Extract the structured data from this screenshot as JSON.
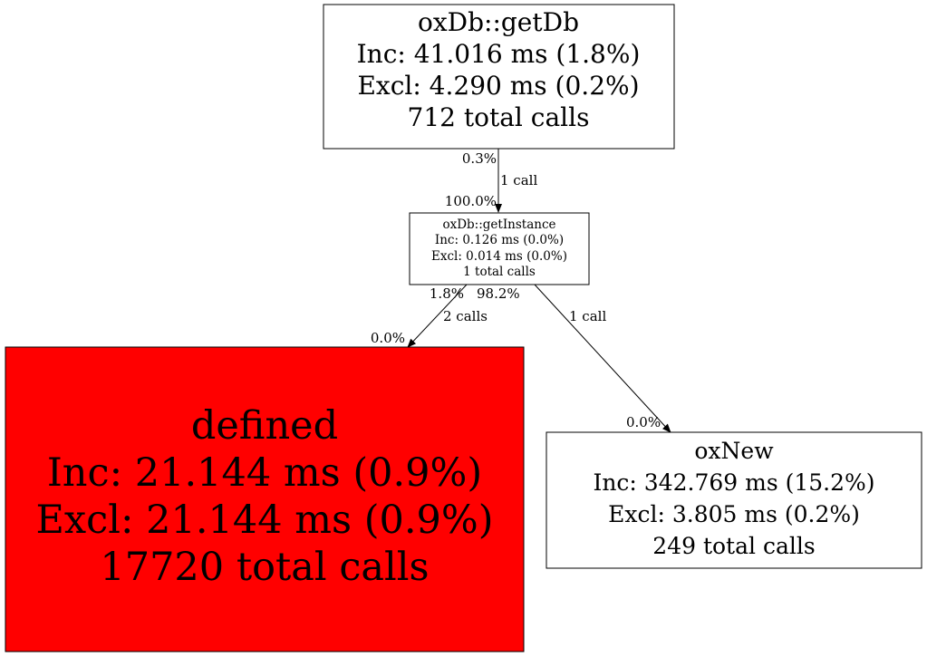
{
  "nodes": {
    "getDb": {
      "lines": [
        "oxDb::getDb",
        "Inc: 41.016 ms (1.8%)",
        "Excl: 4.290 ms (0.2%)",
        "712 total calls"
      ],
      "fill": "#ffffff"
    },
    "getInstance": {
      "lines": [
        "oxDb::getInstance",
        "Inc: 0.126 ms (0.0%)",
        "Excl: 0.014 ms (0.0%)",
        "1 total calls"
      ],
      "fill": "#ffffff"
    },
    "defined": {
      "lines": [
        "defined",
        "Inc: 21.144 ms (0.9%)",
        "Excl: 21.144 ms (0.9%)",
        "17720 total calls"
      ],
      "fill": "#ff0000"
    },
    "oxNew": {
      "lines": [
        "oxNew",
        "Inc: 342.769 ms (15.2%)",
        "Excl: 3.805 ms (0.2%)",
        "249 total calls"
      ],
      "fill": "#ffffff"
    }
  },
  "edges": [
    {
      "from": "oxDb::getDb",
      "to": "oxDb::getInstance",
      "tail_pct": "0.3%",
      "calls": "1 call",
      "head_pct": "100.0%"
    },
    {
      "from": "oxDb::getInstance",
      "to": "defined",
      "tail_pct": "1.8%",
      "calls": "2 calls",
      "head_pct": "0.0%"
    },
    {
      "from": "oxDb::getInstance",
      "to": "oxNew",
      "tail_pct": "98.2%",
      "calls": "1 call",
      "head_pct": "0.0%"
    }
  ]
}
